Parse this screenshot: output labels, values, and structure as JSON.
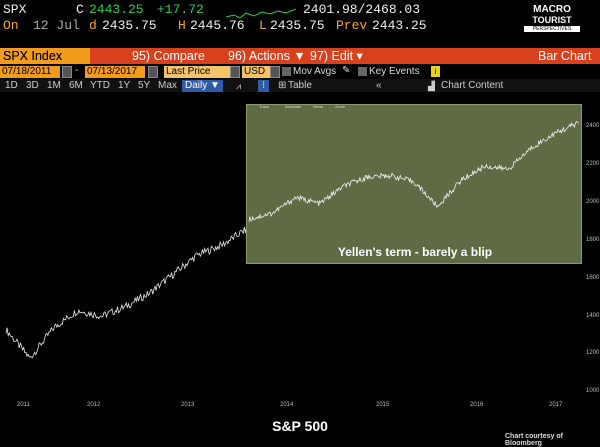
{
  "ticker": {
    "symbol": "SPX",
    "type_letter": "C",
    "last": "2443.25",
    "change": "+17.72",
    "range": "2401.98/2468.03",
    "on_label": "On",
    "date": "12 Jul",
    "d_label": "d",
    "open": "2435.75",
    "h_label": "H",
    "high": "2445.76",
    "l_label": "L",
    "low": "2435.75",
    "prev_label": "Prev",
    "prev": "2443.25"
  },
  "logo": {
    "line1": "MACRO",
    "line2": "TOURIST",
    "line3": "PERSPECTIVES"
  },
  "toolbar": {
    "index": "SPX Index",
    "compare": "95) Compare",
    "actions": "96) Actions ▼",
    "edit": "97) Edit ▾",
    "chart_type": "Bar Chart"
  },
  "controls": {
    "start_date": "07/18/2011",
    "end_date": "07/13/2017",
    "price": "Last Price",
    "currency": "USD",
    "mov_avgs": "Mov Avgs",
    "key_events": "Key Events",
    "chart_content": "Chart Content",
    "table": "Table"
  },
  "timeframes": [
    "1D",
    "3D",
    "1M",
    "6M",
    "YTD",
    "1Y",
    "5Y",
    "Max"
  ],
  "frequency": "Daily ▼",
  "inset": {
    "tools": [
      "Track",
      "Annotate",
      "News",
      "Zoom"
    ],
    "caption": "Yellen's term - barely a blip"
  },
  "x_axis_labels": [
    "2011",
    "2012",
    "2013",
    "2014",
    "2015",
    "2016",
    "2017"
  ],
  "y_axis_labels": [
    "2400",
    "2200",
    "2000",
    "1800",
    "1600",
    "1400",
    "1200",
    "1000"
  ],
  "footer": {
    "title": "S&P 500",
    "credit": "Chart courtesy of Bloomberg"
  },
  "colors": {
    "accent": "#f39b1a",
    "positive": "#22d34a",
    "inset_bg": "#5e6b45"
  },
  "chart_data": {
    "type": "line",
    "series": [
      {
        "x": [
          "2011-07",
          "2011-10",
          "2012-01",
          "2012-04",
          "2012-07",
          "2012-10",
          "2013-01",
          "2013-04",
          "2013-07",
          "2013-10",
          "2014-01",
          "2014-04",
          "2014-07",
          "2014-10",
          "2015-01",
          "2015-04",
          "2015-07",
          "2015-10",
          "2016-01",
          "2016-04",
          "2016-07",
          "2016-10",
          "2017-01",
          "2017-04",
          "2017-07"
        ],
        "y": [
          1300,
          1150,
          1310,
          1400,
          1370,
          1420,
          1490,
          1590,
          1690,
          1740,
          1820,
          1860,
          1960,
          1920,
          2030,
          2090,
          2100,
          2060,
          1900,
          2070,
          2160,
          2140,
          2280,
          2370,
          2440
        ]
      }
    ],
    "ylim": [
      1000,
      2500
    ]
  }
}
